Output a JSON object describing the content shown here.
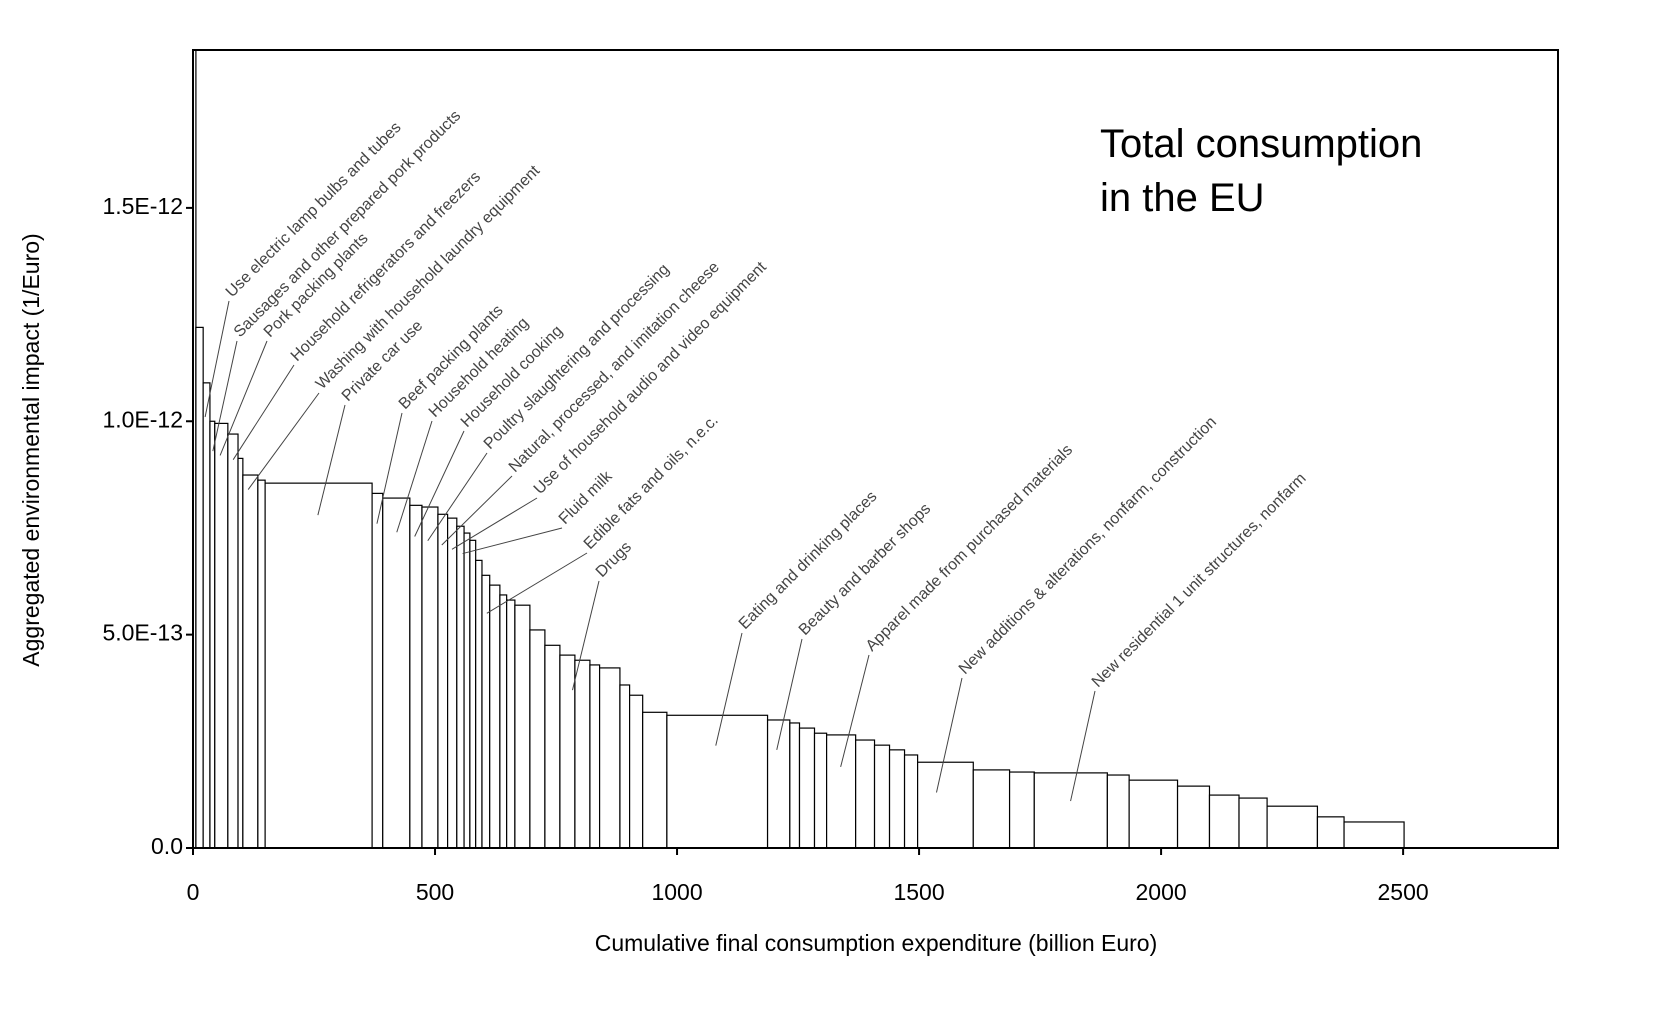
{
  "chart_data": {
    "type": "histogram",
    "xlabel": "Cumulative final consumption expenditure (billion Euro)",
    "ylabel": "Aggregated environmental impact (1/Euro)",
    "inset_text": [
      "Total consumption",
      "in the EU"
    ],
    "color": "#000000",
    "fill": "#ffffff",
    "bins": [
      0,
      6,
      21,
      35,
      45,
      72,
      93,
      103,
      134,
      149,
      370,
      392,
      448,
      473,
      506,
      526,
      545,
      560,
      572,
      584,
      597,
      613,
      634,
      648,
      665,
      696,
      727,
      758,
      789,
      820,
      840,
      882,
      902,
      929,
      979,
      1187,
      1233,
      1253,
      1284,
      1309,
      1369,
      1408,
      1439,
      1470,
      1497,
      1612,
      1687,
      1738,
      1889,
      1934,
      2034,
      2100,
      2161,
      2219,
      2323,
      2378,
      2502
    ],
    "values": [
      1.87e-12,
      1.22e-12,
      1.09e-12,
      1e-12,
      9.95e-13,
      9.7e-13,
      9.13e-13,
      8.74e-13,
      8.62e-13,
      8.55e-13,
      8.31e-13,
      8.2e-13,
      8.03e-13,
      7.99e-13,
      7.82e-13,
      7.73e-13,
      7.54e-13,
      7.38e-13,
      7.21e-13,
      6.74e-13,
      6.39e-13,
      6.16e-13,
      5.93e-13,
      5.81e-13,
      5.69e-13,
      5.11e-13,
      4.75e-13,
      4.52e-13,
      4.4e-13,
      4.29e-13,
      4.22e-13,
      3.82e-13,
      3.58e-13,
      3.18e-13,
      3.11e-13,
      3e-13,
      2.93e-13,
      2.81e-13,
      2.69e-13,
      2.65e-13,
      2.53e-13,
      2.41e-13,
      2.3e-13,
      2.18e-13,
      2.01e-13,
      1.83e-13,
      1.78e-13,
      1.76e-13,
      1.71e-13,
      1.59e-13,
      1.45e-13,
      1.24e-13,
      1.17e-13,
      9.8e-14,
      7.3e-14,
      6.1e-14
    ],
    "xlim": [
      0,
      2820
    ],
    "ylim": [
      0,
      1.87e-12
    ],
    "xticks": [
      0,
      500,
      1000,
      1500,
      2000,
      2500
    ],
    "yticks": [
      {
        "value": 0,
        "label": "0.0"
      },
      {
        "value": 5e-13,
        "label": "5.0E-13"
      },
      {
        "value": 1e-12,
        "label": "1.0E-12"
      },
      {
        "value": 1.5e-12,
        "label": "1.5E-12"
      }
    ],
    "annotations": [
      {
        "text": "Use electric lamp bulbs and tubes",
        "x": 25,
        "y": 1.01e-12
      },
      {
        "text": "Sausages and other prepared pork products",
        "x": 41,
        "y": 9.3e-13
      },
      {
        "text": "Pork packing plants",
        "x": 56,
        "y": 9.2e-13
      },
      {
        "text": "Household refrigerators and freezers",
        "x": 83,
        "y": 9.1e-13
      },
      {
        "text": "Washing with household laundry equipment",
        "x": 114,
        "y": 8.4e-13
      },
      {
        "text": "Private car use",
        "x": 258,
        "y": 7.8e-13
      },
      {
        "text": "Beef packing plants",
        "x": 380,
        "y": 7.6e-13
      },
      {
        "text": "Household heating",
        "x": 421,
        "y": 7.4e-13
      },
      {
        "text": "Household cooking",
        "x": 458,
        "y": 7.3e-13
      },
      {
        "text": "Poultry slaughtering and processing",
        "x": 485,
        "y": 7.2e-13
      },
      {
        "text": "Natural, processed, and imitation cheese",
        "x": 514,
        "y": 7.1e-13
      },
      {
        "text": "Use of household audio and video equipment",
        "x": 535,
        "y": 7e-13
      },
      {
        "text": "Fluid milk",
        "x": 557,
        "y": 6.9e-13
      },
      {
        "text": "Edible fats and oils, n.e.c.",
        "x": 607,
        "y": 5.5e-13
      },
      {
        "text": "Drugs",
        "x": 784,
        "y": 3.7e-13
      },
      {
        "text": "Eating and drinking places",
        "x": 1080,
        "y": 2.4e-13
      },
      {
        "text": "Beauty and barber shops",
        "x": 1206,
        "y": 2.3e-13
      },
      {
        "text": "Apparel made from purchased materials",
        "x": 1338,
        "y": 1.9e-13
      },
      {
        "text": "New additions & alterations, nonfarm, construction",
        "x": 1536,
        "y": 1.3e-13
      },
      {
        "text": "New residential 1 unit structures, nonfarm",
        "x": 1813,
        "y": 1.1e-13
      }
    ]
  }
}
